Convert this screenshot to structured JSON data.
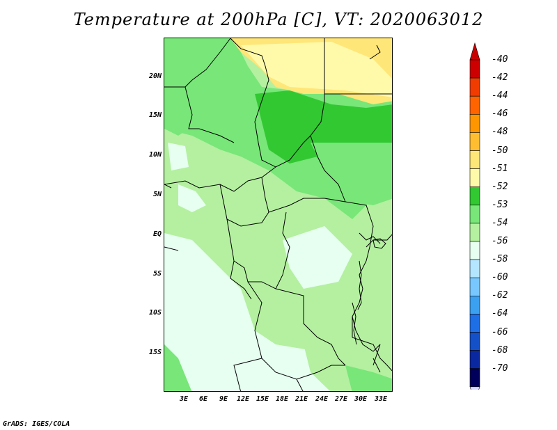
{
  "title": "Temperature at 200hPa [C], VT: 2020063012",
  "credit": "GrADS: IGES/COLA",
  "lat_labels": [
    "20N",
    "15N",
    "10N",
    "5N",
    "EQ",
    "5S",
    "10S",
    "15S"
  ],
  "lon_labels": [
    "3E",
    "6E",
    "9E",
    "12E",
    "15E",
    "18E",
    "21E",
    "24E",
    "27E",
    "30E",
    "33E"
  ],
  "colorbar": {
    "levels": [
      "-40",
      "-42",
      "-44",
      "-46",
      "-48",
      "-50",
      "-51",
      "-52",
      "-53",
      "-54",
      "-56",
      "-58",
      "-60",
      "-62",
      "-64",
      "-66",
      "-68",
      "-70"
    ],
    "colors": [
      "#cc0000",
      "#f03c00",
      "#ff6400",
      "#ff9600",
      "#ffbe32",
      "#ffe678",
      "#fffaaa",
      "#32c832",
      "#78e678",
      "#b4f0a0",
      "#e6fff0",
      "#b4e6ff",
      "#78c8ff",
      "#3ca0f0",
      "#1e6ee6",
      "#1450c8",
      "#0a28a0",
      "#00005a"
    ],
    "top_arrow_color": "#c80000",
    "bottom_arrow_color": "#dcdcff"
  },
  "colors": {
    "yellow_light": "#fffaaa",
    "yellow": "#ffe678",
    "green_dark": "#32c832",
    "green_mid": "#78e678",
    "green_light": "#b4f0a0",
    "cyan_light": "#e6fff0"
  }
}
